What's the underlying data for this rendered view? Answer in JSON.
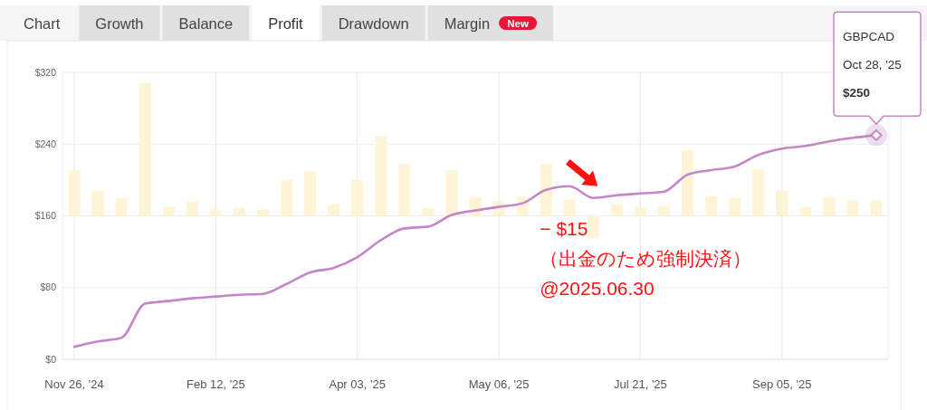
{
  "chart_data": [
    {
      "type": "other",
      "annotations": [
        "Chart",
        "Growth",
        "Balance",
        "Profit",
        "Drawdown",
        "Margin",
        "New"
      ]
    },
    {
      "type": "line",
      "categories": [
        "Nov 26, '24",
        null,
        null,
        null,
        null,
        null,
        "Feb 12, '25",
        null,
        null,
        null,
        null,
        null,
        "Apr 03, '25",
        null,
        null,
        null,
        null,
        null,
        "May 06, '25",
        null,
        null,
        null,
        null,
        null,
        "Jul 21, '25",
        null,
        null,
        null,
        null,
        null,
        "Sep 05, '25",
        null,
        null,
        null,
        null
      ],
      "ylim": [
        0,
        320
      ],
      "yticks": [
        {
          "value": 0,
          "label": "$0"
        },
        {
          "value": 80,
          "label": "$80"
        },
        {
          "value": 160,
          "label": "$160"
        },
        {
          "value": 240,
          "label": "$240"
        },
        {
          "value": 320,
          "label": "$320"
        }
      ],
      "grid": true,
      "series": [
        {
          "type": "bar",
          "color": "#fff4d6",
          "base": [
            160,
            160,
            160,
            160,
            160,
            160,
            160,
            160,
            160,
            160,
            160,
            160,
            160,
            160,
            160,
            160,
            160,
            160,
            160,
            160,
            160,
            160,
            160,
            160,
            160,
            160,
            160,
            160,
            160,
            160,
            160,
            160,
            160,
            160,
            160
          ],
          "values": [
            51,
            28,
            20,
            148,
            10,
            16,
            7,
            9,
            7,
            40,
            50,
            13,
            40,
            89,
            58,
            9,
            51,
            21,
            16,
            21,
            58,
            18,
            -25,
            13,
            9,
            11,
            73,
            22,
            20,
            52,
            28,
            10,
            21,
            17,
            17
          ]
        },
        {
          "type": "line",
          "color": "#c586c8",
          "values": [
            14,
            20,
            24,
            62,
            65,
            68,
            70,
            72,
            73,
            84,
            97,
            102,
            114,
            133,
            146,
            148,
            161,
            166,
            170,
            174,
            189,
            193,
            180,
            183,
            185,
            187,
            206,
            211,
            215,
            228,
            235,
            238,
            243,
            247,
            250
          ]
        }
      ],
      "annotations": [
        {
          "text": "GBPCAD\nOct 28, '25\n$250",
          "y": 250
        },
        {
          "text": "− $15\n（出金のため強制決済）\n@2025.06.30",
          "y": 180
        }
      ]
    }
  ]
}
